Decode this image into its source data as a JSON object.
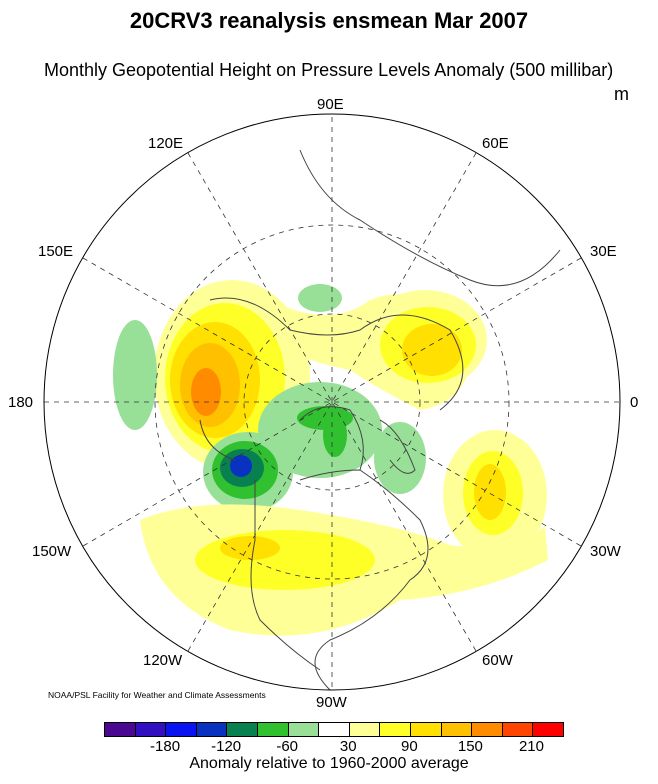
{
  "title": "20CRV3 reanalysis ensmean Mar 2007",
  "subtitle": "Monthly Geopotential Height on Pressure Levels Anomaly (500 millibar)",
  "units": "m",
  "longitude_labels": {
    "top": "90E",
    "top_left": "120E",
    "top_right": "60E",
    "upper_left": "150E",
    "upper_right": "30E",
    "left": "180",
    "right": "0",
    "lower_left": "150W",
    "lower_right": "30W",
    "bottom_left": "120W",
    "bottom_right": "60W",
    "bottom": "90W"
  },
  "credit": "NOAA/PSL Facility for Weather and Climate Assessments",
  "colorbar": {
    "colors": [
      "#4B0890",
      "#3010C0",
      "#0A14F0",
      "#0A32C0",
      "#088050",
      "#30C030",
      "#98E098",
      "#FFFFFF",
      "#FFFF98",
      "#FFFF28",
      "#FFE000",
      "#FFC000",
      "#FF8C00",
      "#FF4500",
      "#FF0000"
    ],
    "tick_labels": [
      "-180",
      "-120",
      "-60",
      "30",
      "90",
      "150",
      "210"
    ],
    "title": "Anomaly relative to 1960-2000 average"
  }
}
